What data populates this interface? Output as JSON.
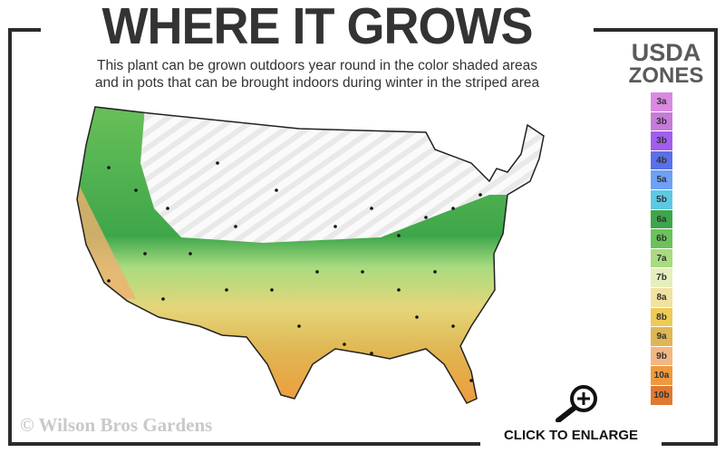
{
  "header": {
    "title": "WHERE IT GROWS",
    "subtitle_line1": "This plant can be grown outdoors year round in the color shaded areas",
    "subtitle_line2": "and in pots that can be brought indoors during winter in the striped area"
  },
  "legend": {
    "title_line1": "USDA",
    "title_line2": "ZONES",
    "zones": [
      {
        "label": "3a",
        "color": "#d98ae0"
      },
      {
        "label": "3b",
        "color": "#c77ad9"
      },
      {
        "label": "3b",
        "color": "#a05ef0"
      },
      {
        "label": "4b",
        "color": "#5a70e8"
      },
      {
        "label": "5a",
        "color": "#6fa0f5"
      },
      {
        "label": "5b",
        "color": "#5ec8e2"
      },
      {
        "label": "6a",
        "color": "#3ea64a"
      },
      {
        "label": "6b",
        "color": "#6cc25a"
      },
      {
        "label": "7a",
        "color": "#a9db80"
      },
      {
        "label": "7b",
        "color": "#e4efbc"
      },
      {
        "label": "8a",
        "color": "#f0e2a0"
      },
      {
        "label": "8b",
        "color": "#edcb55"
      },
      {
        "label": "9a",
        "color": "#e0b652"
      },
      {
        "label": "9b",
        "color": "#f2b682"
      },
      {
        "label": "10a",
        "color": "#ee9a3c"
      },
      {
        "label": "10b",
        "color": "#e07a30"
      }
    ]
  },
  "footer": {
    "copyright": "© Wilson Bros Gardens",
    "enlarge_label": "CLICK TO ENLARGE"
  }
}
